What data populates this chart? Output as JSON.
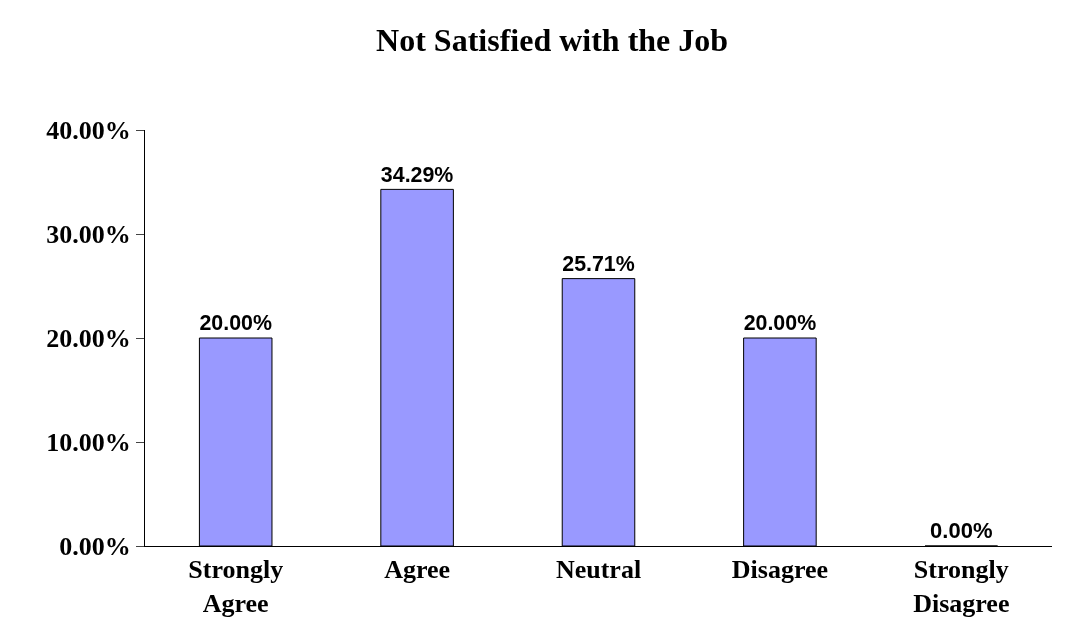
{
  "chart_data": {
    "type": "bar",
    "title": "Not Satisfied with the Job",
    "categories": [
      "Strongly Agree",
      "Agree",
      "Neutral",
      "Disagree",
      "Strongly Disagree"
    ],
    "values": [
      20.0,
      34.29,
      25.71,
      20.0,
      0.0
    ],
    "value_labels": [
      "20.00%",
      "34.29%",
      "25.71%",
      "20.00%",
      "0.00%"
    ],
    "color": "#9999ff",
    "ylim": [
      0,
      40
    ],
    "yticks": [
      {
        "value": 0,
        "label": "0.00%"
      },
      {
        "value": 10,
        "label": "10.00%"
      },
      {
        "value": 20,
        "label": "20.00%"
      },
      {
        "value": 30,
        "label": "30.00%"
      },
      {
        "value": 40,
        "label": "40.00%"
      }
    ],
    "grid": false
  }
}
